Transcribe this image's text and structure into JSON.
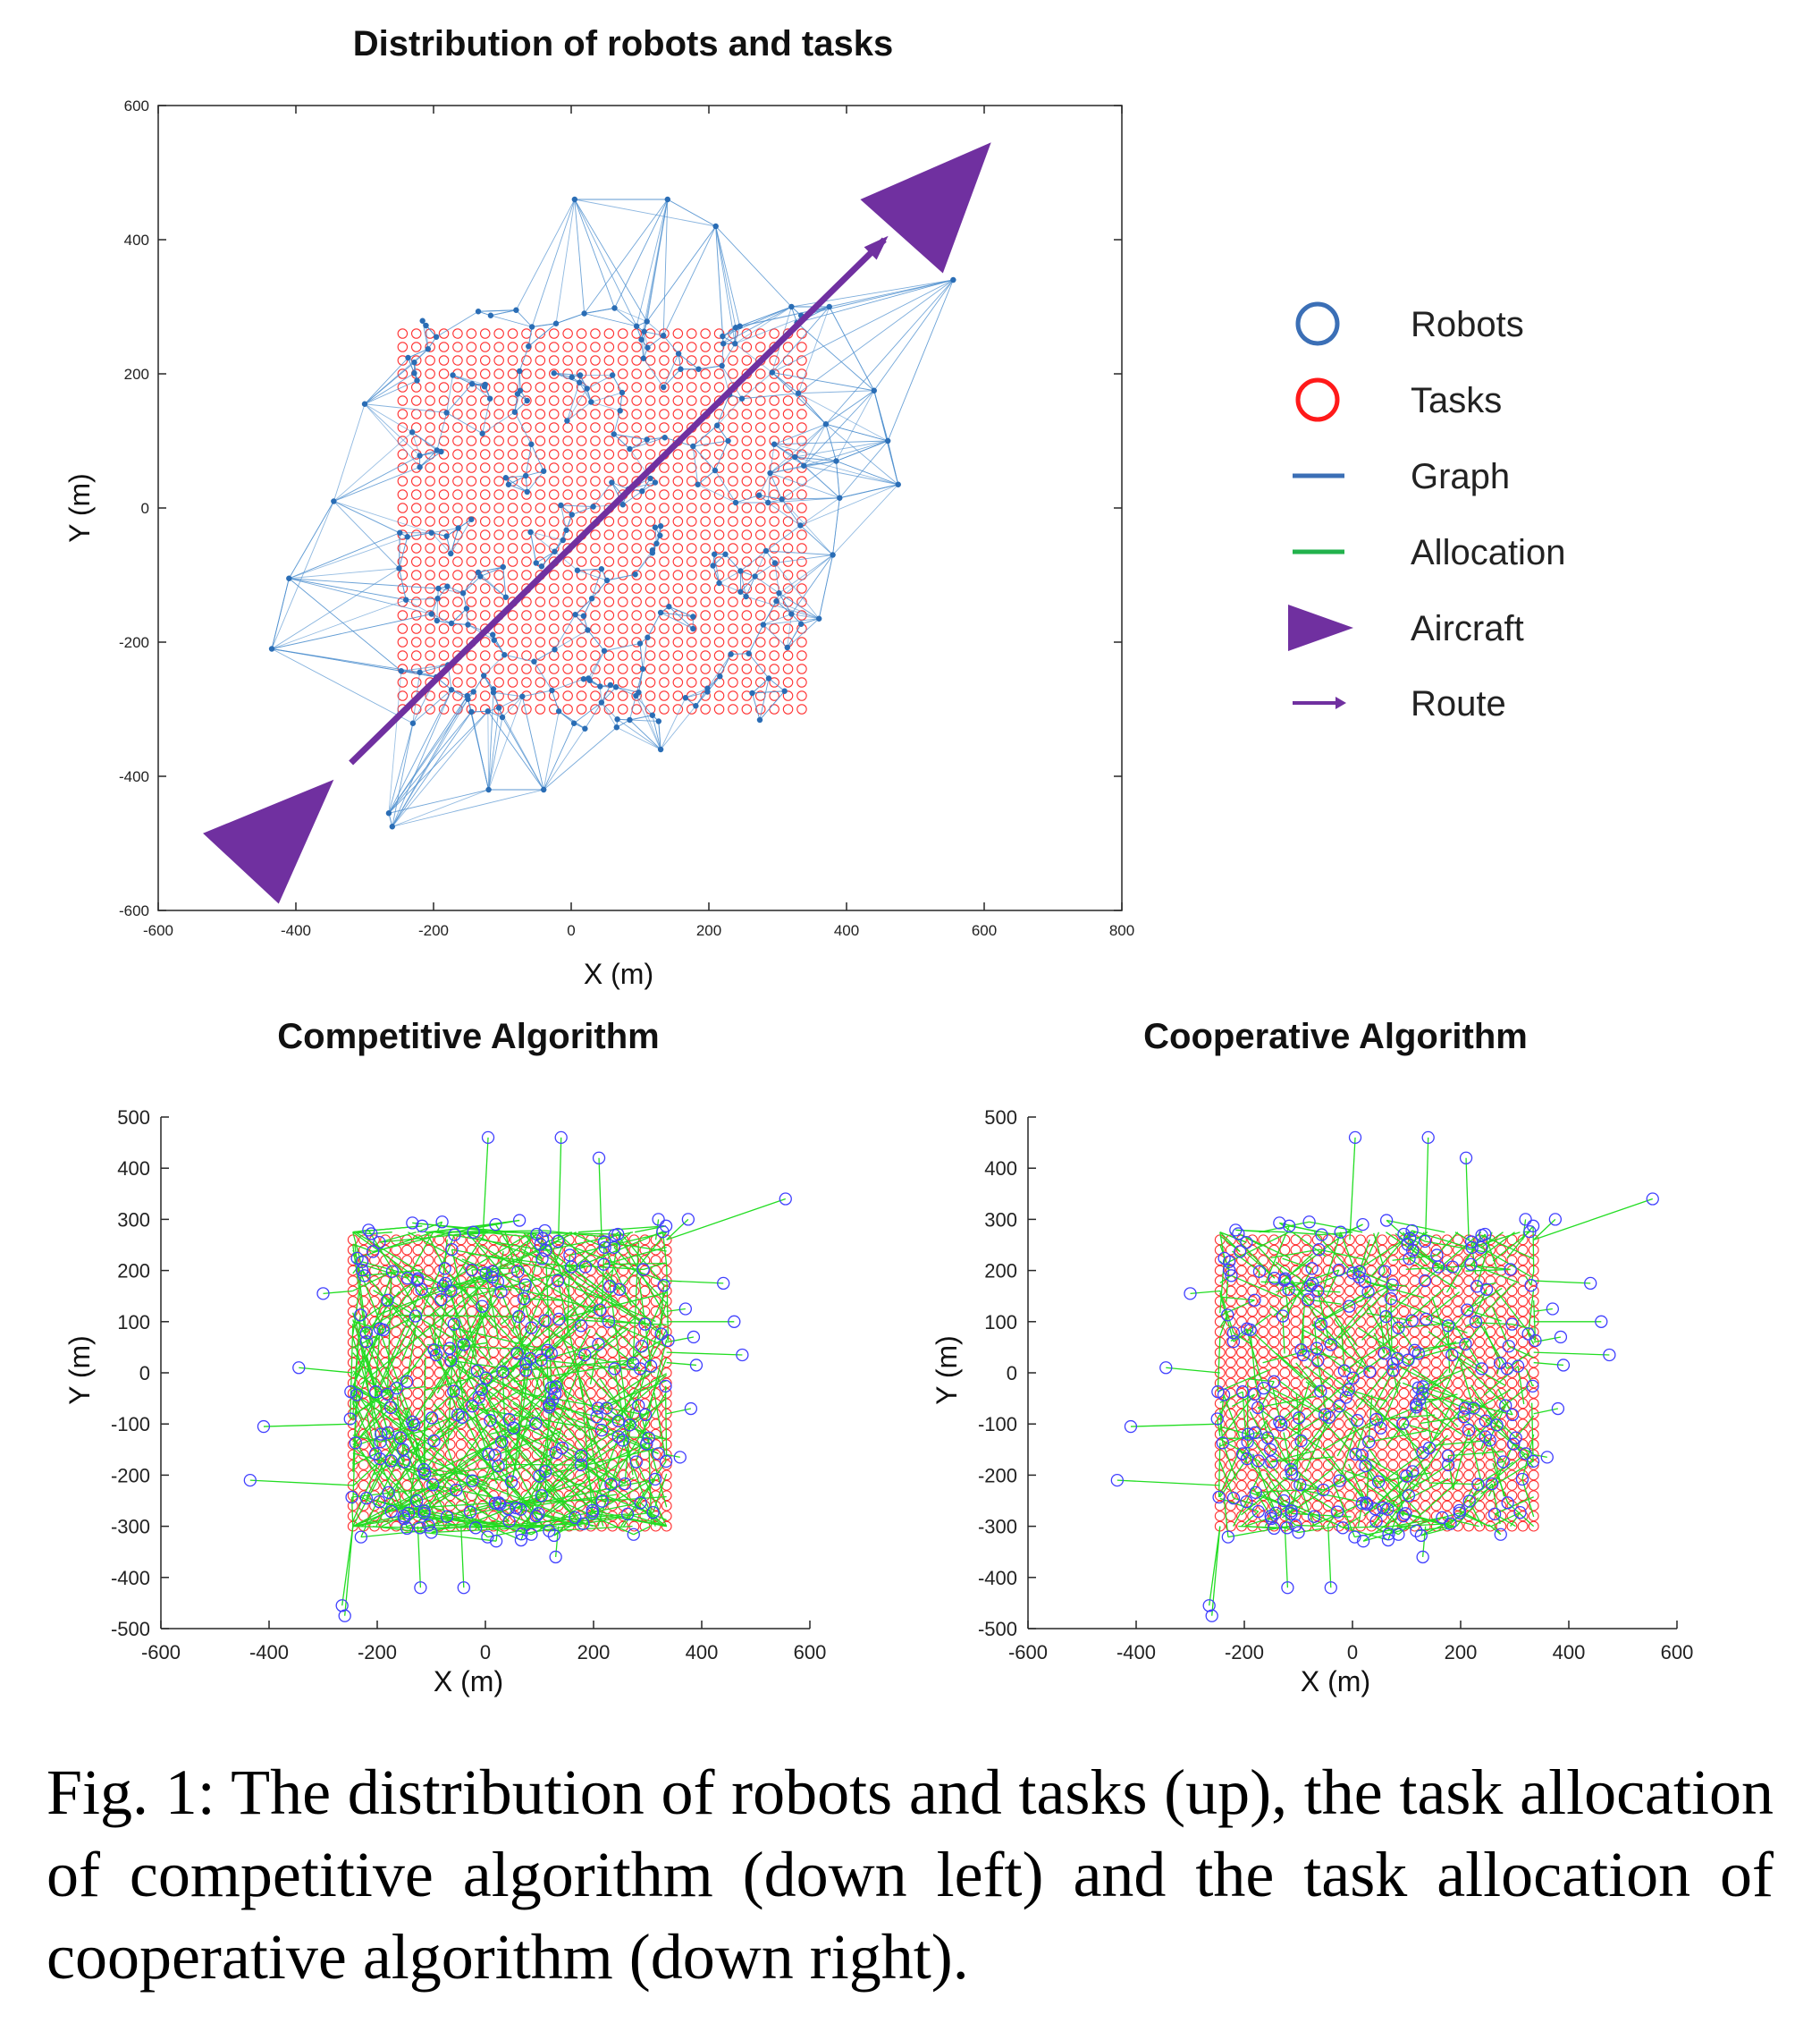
{
  "figure": {
    "caption": "Fig. 1: The distribution of robots and tasks (up), the task allocation of competitive algorithm (down left) and the task allocation of cooperative algorithm (down right)."
  },
  "legend": {
    "entries": [
      {
        "label": "Robots",
        "marker": "circle",
        "color": "#3b6fb6"
      },
      {
        "label": "Tasks",
        "marker": "circle",
        "color": "#ff1a1a"
      },
      {
        "label": "Graph",
        "marker": "line",
        "color": "#3b6fb6"
      },
      {
        "label": "Allocation",
        "marker": "line",
        "color": "#22b24c"
      },
      {
        "label": "Aircraft",
        "marker": "triangle",
        "color": "#7030a0"
      },
      {
        "label": "Route",
        "marker": "arrow",
        "color": "#7030a0"
      }
    ]
  },
  "chart_data": [
    {
      "id": "top",
      "type": "scatter",
      "title": "Distribution of robots and tasks",
      "xlabel": "X (m)",
      "ylabel": "Y (m)",
      "xlim": [
        -600,
        800
      ],
      "ylim": [
        -600,
        600
      ],
      "xticks": [
        -600,
        -400,
        -200,
        0,
        200,
        400,
        600,
        800
      ],
      "yticks": [
        -600,
        -400,
        -200,
        0,
        200,
        400,
        600
      ],
      "grid": false,
      "colors": {
        "robots": "#2a6db5",
        "tasks": "#ff3030",
        "graph": "#4f90cf",
        "aircraft": "#7030a0",
        "route": "#7030a0"
      },
      "tasks_grid": {
        "x_start": -245,
        "x_end": 335,
        "x_step": 20,
        "y_start": -300,
        "y_end": 275,
        "y_step": 20
      },
      "route": {
        "from": [
          -320,
          -380
        ],
        "to": [
          455,
          400
        ]
      },
      "aircraft": [
        {
          "tip": [
            -425,
            -590
          ],
          "base_a": [
            -535,
            -485
          ],
          "base_b": [
            -345,
            -405
          ]
        },
        {
          "tip": [
            540,
            350
          ],
          "base_a": [
            420,
            460
          ],
          "base_b": [
            610,
            545
          ]
        }
      ],
      "robots_outer": [
        [
          5,
          460
        ],
        [
          140,
          460
        ],
        [
          210,
          420
        ],
        [
          555,
          340
        ],
        [
          475,
          35
        ],
        [
          460,
          100
        ],
        [
          440,
          175
        ],
        [
          -300,
          155
        ],
        [
          -345,
          10
        ],
        [
          -410,
          -105
        ],
        [
          -435,
          -210
        ],
        [
          -260,
          -475
        ],
        [
          -265,
          -455
        ],
        [
          -40,
          -420
        ],
        [
          -120,
          -420
        ],
        [
          130,
          -360
        ],
        [
          360,
          -165
        ],
        [
          380,
          -70
        ],
        [
          390,
          15
        ],
        [
          385,
          70
        ],
        [
          370,
          125
        ],
        [
          375,
          300
        ],
        [
          320,
          300
        ]
      ]
    },
    {
      "id": "competitive",
      "type": "scatter",
      "title": "Competitive Algorithm",
      "xlabel": "X (m)",
      "ylabel": "Y (m)",
      "xlim": [
        -600,
        600
      ],
      "ylim": [
        -500,
        500
      ],
      "xticks": [
        -600,
        -400,
        -200,
        0,
        200,
        400,
        600
      ],
      "yticks": [
        -500,
        -400,
        -300,
        -200,
        -100,
        0,
        100,
        200,
        300,
        400,
        500
      ],
      "grid": false,
      "colors": {
        "robots": "#4040ff",
        "tasks": "#ff3030",
        "allocation": "#22dd22"
      },
      "tasks_grid": {
        "x_start": -245,
        "x_end": 335,
        "x_step": 20,
        "y_start": -300,
        "y_end": 275,
        "y_step": 20
      },
      "allocation_reach": 0.95
    },
    {
      "id": "cooperative",
      "type": "scatter",
      "title": "Cooperative Algorithm",
      "xlabel": "X (m)",
      "ylabel": "Y (m)",
      "xlim": [
        -600,
        600
      ],
      "ylim": [
        -500,
        500
      ],
      "xticks": [
        -600,
        -400,
        -200,
        0,
        200,
        400,
        600
      ],
      "yticks": [
        -500,
        -400,
        -300,
        -200,
        -100,
        0,
        100,
        200,
        300,
        400,
        500
      ],
      "grid": false,
      "colors": {
        "robots": "#4040ff",
        "tasks": "#ff3030",
        "allocation": "#22dd22"
      },
      "tasks_grid": {
        "x_start": -245,
        "x_end": 335,
        "x_step": 20,
        "y_start": -300,
        "y_end": 275,
        "y_step": 20
      },
      "allocation_reach": 0.45
    }
  ]
}
